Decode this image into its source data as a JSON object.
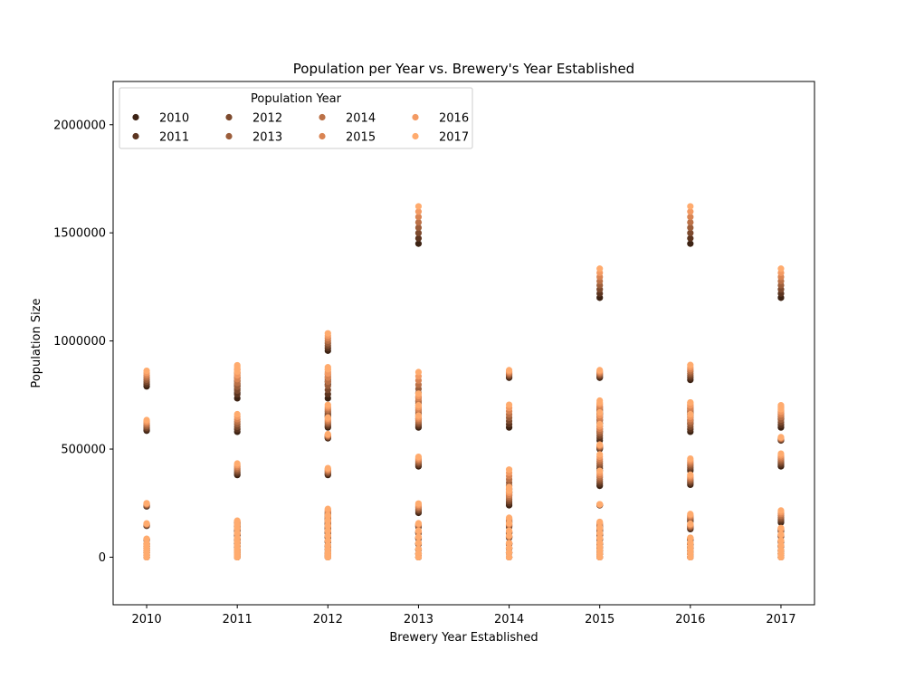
{
  "chart_data": {
    "type": "scatter",
    "title": "Population per Year vs. Brewery's Year Established",
    "xlabel": "Brewery Year Established",
    "ylabel": "Population Size",
    "xlim": [
      2009.63,
      2017.37
    ],
    "ylim": [
      -220000,
      2200000
    ],
    "xticks": [
      2010,
      2011,
      2012,
      2013,
      2014,
      2015,
      2016,
      2017
    ],
    "yticks": [
      0,
      500000,
      1000000,
      1500000,
      2000000
    ],
    "legend": {
      "title": "Population Year",
      "placement": "top-left",
      "columns": 4
    },
    "series": [
      {
        "name": "2010",
        "color": "#3d2314"
      },
      {
        "name": "2011",
        "color": "#5c3520"
      },
      {
        "name": "2012",
        "color": "#7d4a2e"
      },
      {
        "name": "2013",
        "color": "#9c5e3b"
      },
      {
        "name": "2014",
        "color": "#bb7147"
      },
      {
        "name": "2015",
        "color": "#d98453"
      },
      {
        "name": "2016",
        "color": "#f39a63"
      },
      {
        "name": "2017",
        "color": "#ffab6e"
      }
    ],
    "groups": [
      {
        "x": 2010,
        "base": [
          0,
          10000,
          20000,
          30000,
          40000,
          50000,
          60000,
          80000,
          145000,
          235000,
          585000,
          790000
        ],
        "growth": [
          0.005,
          0.005,
          0.006,
          0.006,
          0.007,
          0.007,
          0.008,
          0.009,
          0.011,
          0.009,
          0.012,
          0.013
        ]
      },
      {
        "x": 2011,
        "base": [
          0,
          8000,
          15000,
          25000,
          35000,
          50000,
          65000,
          80000,
          100000,
          120000,
          135000,
          150000,
          380000,
          580000,
          735000,
          760000,
          790000
        ],
        "growth": [
          0.01,
          0.01,
          0.012,
          0.012,
          0.013,
          0.014,
          0.015,
          0.016,
          0.017,
          0.018,
          0.018,
          0.018,
          0.02,
          0.02,
          0.024,
          0.024,
          0.016
        ]
      },
      {
        "x": 2012,
        "base": [
          0,
          10000,
          20000,
          35000,
          50000,
          70000,
          90000,
          110000,
          130000,
          150000,
          170000,
          190000,
          380000,
          550000,
          600000,
          650000,
          735000,
          800000,
          955000
        ],
        "growth": [
          0.01,
          0.012,
          0.013,
          0.014,
          0.015,
          0.016,
          0.017,
          0.018,
          0.019,
          0.02,
          0.02,
          0.025,
          0.012,
          0.005,
          0.011,
          0.012,
          0.026,
          0.014,
          0.012
        ]
      },
      {
        "x": 2013,
        "base": [
          0,
          15000,
          35000,
          60000,
          85000,
          110000,
          140000,
          205000,
          420000,
          600000,
          640000,
          680000,
          720000,
          1450000
        ],
        "growth": [
          0.012,
          0.013,
          0.014,
          0.015,
          0.016,
          0.017,
          0.017,
          0.03,
          0.015,
          0.013,
          0.014,
          0.016,
          0.027,
          0.017
        ]
      },
      {
        "x": 2014,
        "base": [
          0,
          20000,
          40000,
          60000,
          90000,
          110000,
          140000,
          160000,
          240000,
          285000,
          300000,
          600000,
          830000
        ],
        "growth": [
          0.01,
          0.012,
          0.013,
          0.014,
          0.016,
          0.017,
          0.018,
          0.02,
          0.04,
          0.02,
          0.05,
          0.025,
          0.006
        ]
      },
      {
        "x": 2015,
        "base": [
          0,
          15000,
          30000,
          45000,
          60000,
          80000,
          100000,
          120000,
          135000,
          240000,
          330000,
          400000,
          500000,
          540000,
          580000,
          620000,
          660000,
          830000,
          1200000
        ],
        "growth": [
          0.012,
          0.013,
          0.014,
          0.015,
          0.016,
          0.017,
          0.018,
          0.02,
          0.03,
          0.003,
          0.03,
          0.027,
          0.006,
          0.02,
          0.022,
          0.024,
          0.012,
          0.006,
          0.016
        ]
      },
      {
        "x": 2016,
        "base": [
          0,
          15000,
          30000,
          45000,
          60000,
          80000,
          130000,
          165000,
          335000,
          400000,
          580000,
          620000,
          660000,
          820000,
          1450000
        ],
        "growth": [
          0.012,
          0.013,
          0.014,
          0.015,
          0.016,
          0.018,
          0.027,
          0.03,
          0.02,
          0.02,
          0.02,
          0.022,
          0.012,
          0.012,
          0.017
        ]
      },
      {
        "x": 2017,
        "base": [
          0,
          15000,
          30000,
          50000,
          70000,
          95000,
          120000,
          160000,
          420000,
          540000,
          600000,
          640000,
          1200000
        ],
        "growth": [
          0.012,
          0.013,
          0.014,
          0.015,
          0.016,
          0.017,
          0.018,
          0.05,
          0.02,
          0.004,
          0.02,
          0.014,
          0.016
        ]
      }
    ]
  }
}
